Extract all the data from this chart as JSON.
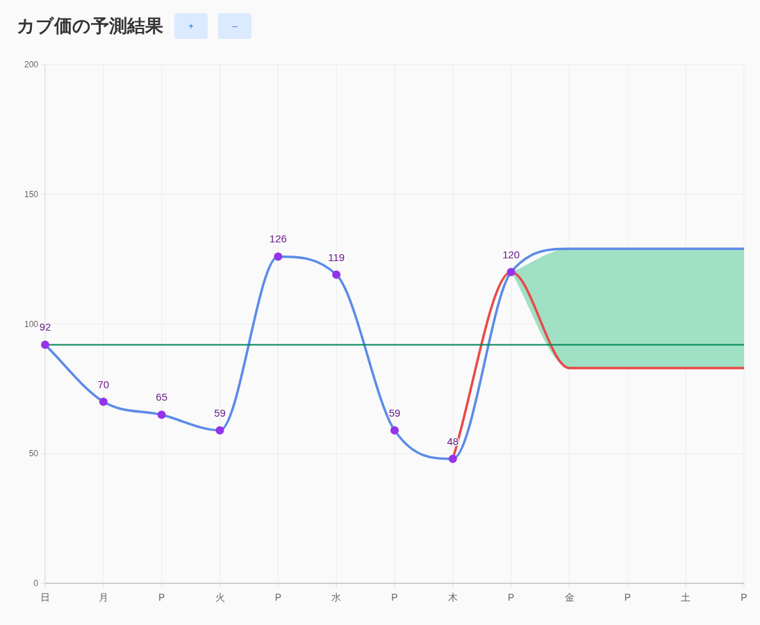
{
  "chart_data": {
    "type": "line",
    "title": "カブ価の予測結果",
    "annotations": [
      "+",
      "–"
    ],
    "categories": [
      "日",
      "月",
      "P",
      "火",
      "P",
      "水",
      "P",
      "木",
      "P",
      "金",
      "P",
      "土",
      "P"
    ],
    "ylim": [
      0,
      200
    ],
    "yticks": [
      0,
      50,
      100,
      150,
      200
    ],
    "grid": true,
    "series": [
      {
        "type": "line",
        "color": "#e84a4a",
        "values": [
          null,
          null,
          null,
          null,
          null,
          null,
          null,
          48,
          120,
          83,
          83,
          83,
          83
        ]
      },
      {
        "type": "line",
        "color": "#5b8be8",
        "values": [
          92,
          70,
          65,
          59,
          126,
          119,
          59,
          48,
          120,
          129,
          129,
          129,
          129
        ],
        "lower": [
          null,
          null,
          null,
          null,
          null,
          null,
          null,
          null,
          120,
          83,
          83,
          83,
          83
        ],
        "upper": [
          null,
          null,
          null,
          null,
          null,
          null,
          null,
          null,
          120,
          129,
          129,
          129,
          129
        ]
      },
      {
        "type": "scatter",
        "color": "#9333ea",
        "marker": "circle",
        "data_labels": true,
        "values": [
          92,
          70,
          65,
          59,
          126,
          119,
          59,
          48,
          120,
          null,
          null,
          null,
          null
        ]
      }
    ],
    "ref_lines": [
      {
        "axis": "y",
        "value": 92,
        "color": "#00875a"
      }
    ]
  }
}
